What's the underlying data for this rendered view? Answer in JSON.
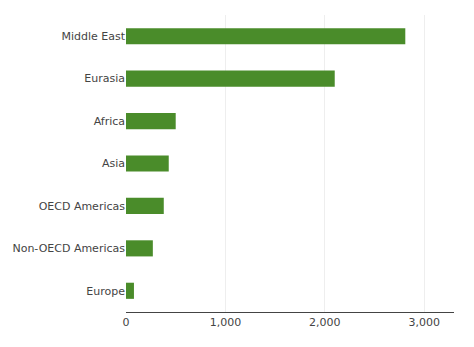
{
  "chart_data": {
    "type": "bar",
    "orientation": "horizontal",
    "categories": [
      "Middle East",
      "Eurasia",
      "Africa",
      "Asia",
      "OECD Americas",
      "Non-OECD Americas",
      "Europe"
    ],
    "values": [
      2810,
      2100,
      500,
      430,
      380,
      270,
      80
    ],
    "color": "#4a8c2a",
    "xlim": [
      0,
      3300
    ],
    "xticks": [
      0,
      {
        "value": 1000,
        "label": "1,000"
      },
      {
        "value": 2000,
        "label": "2,000"
      },
      {
        "value": 3000,
        "label": "3,000"
      }
    ],
    "grid": true
  }
}
